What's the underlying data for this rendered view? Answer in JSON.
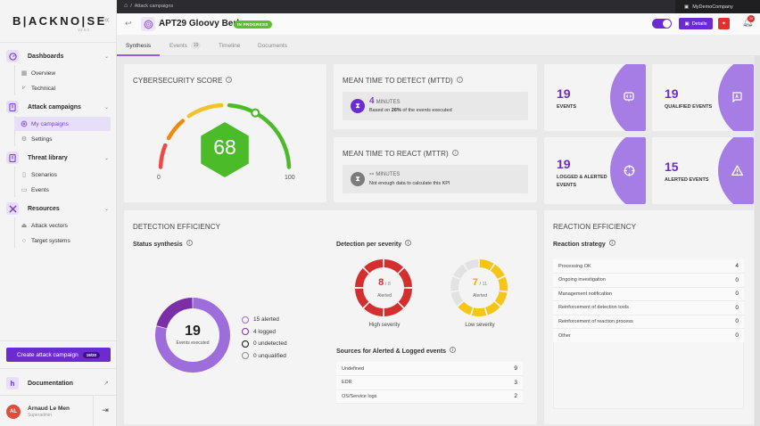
{
  "app": {
    "logo": "B|ACKNO|SE",
    "version": "V2.0.0",
    "collapse_icon": "double-chevron-left-icon"
  },
  "sidebar": {
    "sections": [
      {
        "label": "Dashboards",
        "icon": "gauge-icon",
        "items": [
          {
            "label": "Overview",
            "icon": "grid-icon",
            "active": false
          },
          {
            "label": "Technical",
            "icon": "chart-icon",
            "active": false
          }
        ]
      },
      {
        "label": "Attack campaigns",
        "icon": "book-icon",
        "items": [
          {
            "label": "My campaigns",
            "icon": "fingerprint-icon",
            "active": true
          },
          {
            "label": "Settings",
            "icon": "gear-icon",
            "active": false
          }
        ]
      },
      {
        "label": "Threat library",
        "icon": "book-icon",
        "items": [
          {
            "label": "Scenarios",
            "icon": "document-icon",
            "active": false
          },
          {
            "label": "Events",
            "icon": "message-icon",
            "active": false
          }
        ]
      },
      {
        "label": "Resources",
        "icon": "tools-icon",
        "items": [
          {
            "label": "Attack vectors",
            "icon": "vector-icon",
            "active": false
          },
          {
            "label": "Target systems",
            "icon": "circle-icon",
            "active": false
          }
        ]
      }
    ],
    "create_button": {
      "label": "Create attack campaign",
      "badge": "19/20"
    },
    "documentation": "Documentation",
    "user": {
      "initials": "AL",
      "name": "Arnaud Le Men",
      "role": "Superadmin"
    }
  },
  "topbar": {
    "breadcrumb": "Attack campaigns",
    "company": "MyDemoCompany"
  },
  "header": {
    "title": "APT29 Gloovy Berk",
    "status": "IN PROGRESS",
    "details_label": "Details",
    "notification_count": "20"
  },
  "tabs": [
    {
      "label": "Synthesis",
      "active": true
    },
    {
      "label": "Events",
      "count": "19",
      "active": false
    },
    {
      "label": "Timeline",
      "active": false
    },
    {
      "label": "Documents",
      "active": false
    }
  ],
  "score_card": {
    "title": "CYBERSECURITY SCORE",
    "value": "68",
    "min": "0",
    "max": "100",
    "colors": {
      "red": "#e94b4b",
      "orange": "#f08a0c",
      "yellow": "#f2c12e",
      "green": "#4cbb2a"
    }
  },
  "mttd": {
    "title": "MEAN TIME TO DETECT (MTTD)",
    "value": "4",
    "unit": "MINUTES",
    "desc_prefix": "Based on ",
    "desc_bold": "26%",
    "desc_suffix": " of the events executed"
  },
  "mttr": {
    "title": "MEAN TIME TO REACT (MTTR)",
    "value": "--",
    "unit": "MINUTES",
    "desc": "Not enough data to calculate this KPI"
  },
  "stats": [
    {
      "value": "19",
      "label": "EVENTS",
      "icon": "code-bubble-icon"
    },
    {
      "value": "19",
      "label": "QUALIFIED EVENTS",
      "icon": "qualified-bubble-icon"
    },
    {
      "value": "19",
      "label": "LOGGED & ALERTED EVENTS",
      "icon": "crosshair-icon"
    },
    {
      "value": "15",
      "label": "ALERTED EVENTS",
      "icon": "warning-icon"
    }
  ],
  "detection": {
    "title": "DETECTION EFFICIENCY",
    "status_title": "Status synthesis",
    "total": "19",
    "total_label": "Events executed",
    "legend": [
      {
        "label": "15 alerted",
        "value": 15,
        "color": "#9e6ddc"
      },
      {
        "label": "4 logged",
        "value": 4,
        "color": "#7a2fa6"
      },
      {
        "label": "0 undetected",
        "value": 0,
        "color": "#111111"
      },
      {
        "label": "0 unqualified",
        "value": 0,
        "color": "#8a8a8a"
      }
    ],
    "severity_title": "Detection per severity",
    "severity": [
      {
        "label": "High severity",
        "value": "8",
        "total": "/ 8",
        "sub": "Alerted",
        "alerted": 8,
        "count": 8,
        "color": "#d42f2f"
      },
      {
        "label": "Low severity",
        "value": "7",
        "total": "/ 11",
        "sub": "Alerted",
        "alerted": 7,
        "count": 11,
        "color": "#f5c518"
      }
    ],
    "sources_title": "Sources for Alerted & Logged events",
    "sources": [
      {
        "label": "Undefined",
        "value": "9"
      },
      {
        "label": "EDR",
        "value": "3"
      },
      {
        "label": "OS/Service logs",
        "value": "2"
      }
    ]
  },
  "reaction": {
    "title": "REACTION EFFICIENCY",
    "strategy_title": "Reaction strategy",
    "rows": [
      {
        "label": "Processing OK",
        "value": "4"
      },
      {
        "label": "Ongoing investigation",
        "value": "0"
      },
      {
        "label": "Management notification",
        "value": "0"
      },
      {
        "label": "Reinforcement of detection tools",
        "value": "0"
      },
      {
        "label": "Reinforcement of reaction process",
        "value": "0"
      },
      {
        "label": "Other",
        "value": "0"
      }
    ]
  }
}
